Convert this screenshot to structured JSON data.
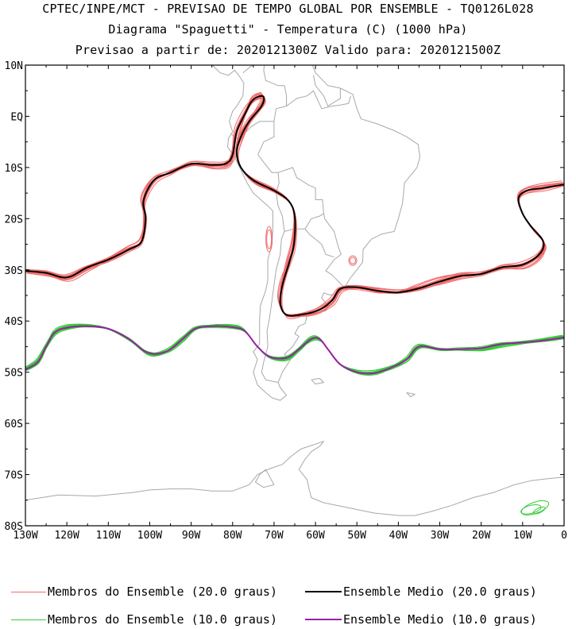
{
  "header": {
    "line1": "CPTEC/INPE/MCT - PREVISAO DE TEMPO GLOBAL POR ENSEMBLE - TQ0126L028",
    "line2": "Diagrama \"Spaguetti\" - Temperatura (C) (1000 hPa)",
    "line3": "Previsao a partir de: 2020121300Z  Valido para: 2020121500Z"
  },
  "axes": {
    "lat_ticks": [
      "10N",
      "EQ",
      "10S",
      "20S",
      "30S",
      "40S",
      "50S",
      "60S",
      "70S",
      "80S"
    ],
    "lat_values": [
      10,
      0,
      -10,
      -20,
      -30,
      -40,
      -50,
      -60,
      -70,
      -80
    ],
    "lon_ticks": [
      "130W",
      "120W",
      "110W",
      "100W",
      "90W",
      "80W",
      "70W",
      "60W",
      "50W",
      "40W",
      "30W",
      "20W",
      "10W",
      "0"
    ],
    "lon_values": [
      -130,
      -120,
      -110,
      -100,
      -90,
      -80,
      -70,
      -60,
      -50,
      -40,
      -30,
      -20,
      -10,
      0
    ],
    "lon_range": [
      -130,
      0
    ],
    "lat_range": [
      -80,
      10
    ]
  },
  "colors": {
    "member_20": "#f06a6a",
    "mean_20": "#000000",
    "member_10": "#33cc33",
    "mean_10": "#9a1fa8",
    "coast": "#a8a8a8"
  },
  "legend": [
    {
      "label": "Membros do Ensemble (20.0 graus)",
      "color": "#f06a6a"
    },
    {
      "label": "Ensemble Medio (20.0 graus)",
      "color": "#000000"
    },
    {
      "label": "Membros do Ensemble (10.0 graus)",
      "color": "#33cc33"
    },
    {
      "label": "Ensemble Medio (10.0 graus)",
      "color": "#9a1fa8"
    }
  ],
  "isotherm_20_mean": [
    [
      -130,
      -30.2
    ],
    [
      -125,
      -30.6
    ],
    [
      -120,
      -31.5
    ],
    [
      -115,
      -29.5
    ],
    [
      -110,
      -28
    ],
    [
      -105,
      -26
    ],
    [
      -102,
      -24.5
    ],
    [
      -101,
      -20
    ],
    [
      -101.5,
      -16.5
    ],
    [
      -99,
      -12.5
    ],
    [
      -95,
      -11
    ],
    [
      -90,
      -9.3
    ],
    [
      -85,
      -9.5
    ],
    [
      -81.5,
      -9.2
    ],
    [
      -80,
      -7.5
    ],
    [
      -79,
      -3
    ],
    [
      -77,
      0.5
    ],
    [
      -75.5,
      2.8
    ],
    [
      -74,
      3.8
    ],
    [
      -72.5,
      3.8
    ],
    [
      -73,
      2
    ],
    [
      -76,
      -1
    ],
    [
      -78,
      -4
    ],
    [
      -79,
      -7
    ],
    [
      -78,
      -10
    ],
    [
      -75,
      -12.5
    ],
    [
      -70,
      -14.5
    ],
    [
      -66.5,
      -16.5
    ],
    [
      -65,
      -19.5
    ],
    [
      -65.2,
      -25
    ],
    [
      -66.5,
      -29
    ],
    [
      -68,
      -33
    ],
    [
      -68.5,
      -36.5
    ],
    [
      -67,
      -38.8
    ],
    [
      -63,
      -38.7
    ],
    [
      -59,
      -37.8
    ],
    [
      -56,
      -36
    ],
    [
      -54,
      -33.7
    ],
    [
      -50,
      -33.4
    ],
    [
      -45,
      -34.1
    ],
    [
      -40,
      -34.4
    ],
    [
      -35,
      -33.6
    ],
    [
      -30,
      -32.3
    ],
    [
      -25,
      -31.2
    ],
    [
      -20,
      -30.8
    ],
    [
      -15,
      -29.5
    ],
    [
      -10,
      -29
    ],
    [
      -6,
      -27
    ],
    [
      -5,
      -24.5
    ],
    [
      -8,
      -21.5
    ],
    [
      -10,
      -19
    ],
    [
      -11,
      -16
    ],
    [
      -9,
      -14.5
    ],
    [
      -5,
      -14
    ],
    [
      0,
      -13.3
    ]
  ],
  "isotherm_10_mean": [
    [
      -130,
      -49.5
    ],
    [
      -127,
      -48
    ],
    [
      -125,
      -45
    ],
    [
      -123,
      -42.3
    ],
    [
      -120,
      -41.3
    ],
    [
      -115,
      -41
    ],
    [
      -110,
      -41.5
    ],
    [
      -105,
      -43.5
    ],
    [
      -101,
      -46
    ],
    [
      -98,
      -46.4
    ],
    [
      -95,
      -45.5
    ],
    [
      -92,
      -43.5
    ],
    [
      -89,
      -41.5
    ],
    [
      -85,
      -41
    ],
    [
      -80,
      -41.2
    ],
    [
      -77,
      -42
    ],
    [
      -74,
      -45
    ],
    [
      -71,
      -47
    ],
    [
      -67,
      -47.2
    ],
    [
      -64,
      -45.5
    ],
    [
      -61,
      -43.5
    ],
    [
      -59,
      -43.5
    ],
    [
      -57,
      -45.5
    ],
    [
      -54,
      -48.5
    ],
    [
      -50,
      -50
    ],
    [
      -46,
      -50.2
    ],
    [
      -42,
      -49.2
    ],
    [
      -38,
      -47.5
    ],
    [
      -35,
      -45
    ],
    [
      -30,
      -45.5
    ],
    [
      -25,
      -45.5
    ],
    [
      -20,
      -45.3
    ],
    [
      -15,
      -44.5
    ],
    [
      -10,
      -44.2
    ],
    [
      -5,
      -43.8
    ],
    [
      0,
      -43.2
    ]
  ]
}
